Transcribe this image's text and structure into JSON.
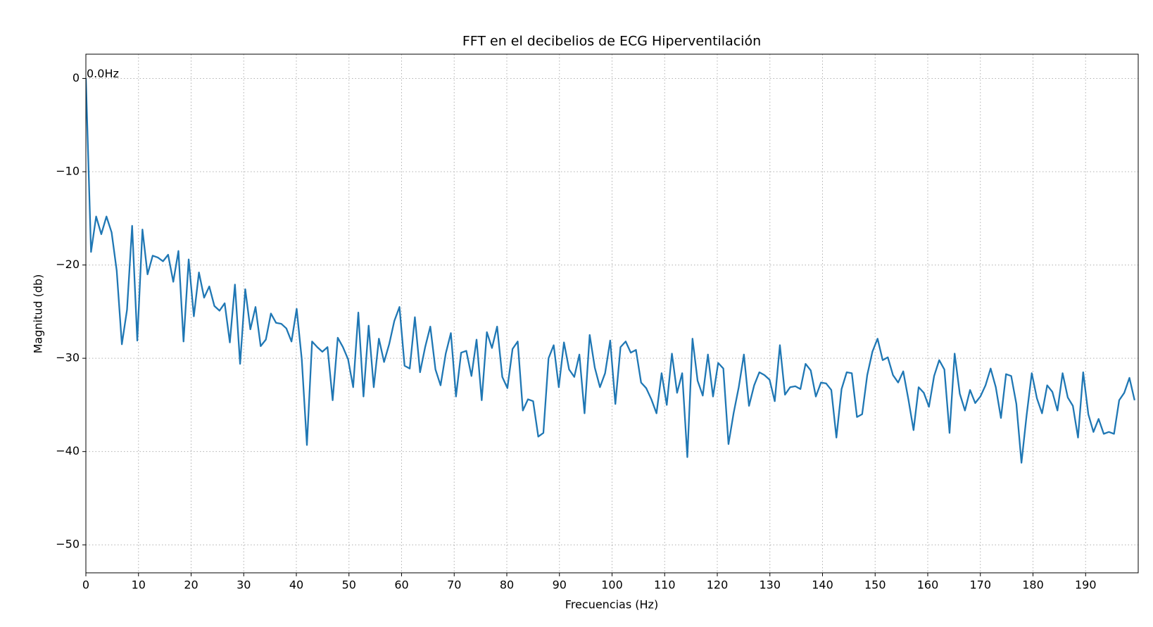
{
  "chart_data": {
    "type": "line",
    "title": "FFT en el decibelios de ECG Hiperventilación",
    "xlabel": "Frecuencias (Hz)",
    "ylabel": "Magnitud (db)",
    "annotation": "0.0Hz",
    "color": "#1f77b4",
    "grid": true,
    "xlim": [
      0,
      200
    ],
    "ylim": [
      -53,
      2.6
    ],
    "xticks": [
      0,
      10,
      20,
      30,
      40,
      50,
      60,
      70,
      80,
      90,
      100,
      110,
      120,
      130,
      140,
      150,
      160,
      170,
      180,
      190
    ],
    "yticks": [
      0,
      {
        "value": -10,
        "label": "−10"
      },
      {
        "value": -20,
        "label": "−20"
      },
      {
        "value": -30,
        "label": "−30"
      },
      {
        "value": -40,
        "label": "−40"
      },
      {
        "value": -50,
        "label": "−50"
      }
    ],
    "x": [
      0,
      0.98,
      1.95,
      2.93,
      3.91,
      4.89,
      5.86,
      6.84,
      7.82,
      8.79,
      9.77,
      10.75,
      11.72,
      12.7,
      13.68,
      14.66,
      15.63,
      16.61,
      17.59,
      18.56,
      19.54,
      20.52,
      21.49,
      22.47,
      23.45,
      24.43,
      25.4,
      26.38,
      27.36,
      28.33,
      29.31,
      30.29,
      31.26,
      32.24,
      33.22,
      34.2,
      35.17,
      36.15,
      37.13,
      38.1,
      39.08,
      40.06,
      41.03,
      42.01,
      42.99,
      43.97,
      44.94,
      45.92,
      46.9,
      47.87,
      48.85,
      49.83,
      50.8,
      51.78,
      52.76,
      53.74,
      54.71,
      55.69,
      56.67,
      57.64,
      58.62,
      59.6,
      60.57,
      61.55,
      62.53,
      63.51,
      64.48,
      65.46,
      66.44,
      67.41,
      68.39,
      69.37,
      70.34,
      71.32,
      72.3,
      73.28,
      74.25,
      75.23,
      76.21,
      77.18,
      78.16,
      79.14,
      80.11,
      81.09,
      82.07,
      83.05,
      84.02,
      85.0,
      85.98,
      86.95,
      87.93,
      88.91,
      89.88,
      90.86,
      91.84,
      92.82,
      93.79,
      94.77,
      95.75,
      96.72,
      97.7,
      98.68,
      99.65,
      100.63,
      101.61,
      102.59,
      103.56,
      104.54,
      105.52,
      106.49,
      107.47,
      108.45,
      109.42,
      110.4,
      111.38,
      112.36,
      113.33,
      114.31,
      115.29,
      116.26,
      117.24,
      118.22,
      119.19,
      120.17,
      121.15,
      122.13,
      123.1,
      124.08,
      125.06,
      126.03,
      127.01,
      127.99,
      128.96,
      129.94,
      130.92,
      131.9,
      132.87,
      133.85,
      134.83,
      135.8,
      136.78,
      137.76,
      138.73,
      139.71,
      140.69,
      141.67,
      142.64,
      143.62,
      144.6,
      145.57,
      146.55,
      147.53,
      148.5,
      149.48,
      150.46,
      151.44,
      152.41,
      153.39,
      154.37,
      155.34,
      156.32,
      157.3,
      158.27,
      159.25,
      160.23,
      161.21,
      162.18,
      163.16,
      164.14,
      165.11,
      166.09,
      167.07,
      168.04,
      169.02,
      170.0,
      170.98,
      171.95,
      172.93,
      173.91,
      174.88,
      175.86,
      176.84,
      177.81,
      178.79,
      179.77,
      180.75,
      181.72,
      182.7,
      183.68,
      184.65,
      185.63,
      186.61,
      187.58,
      188.56,
      189.54,
      190.52,
      191.49,
      192.47,
      193.45,
      194.42,
      195.4,
      196.38,
      197.35,
      198.33,
      199.31
    ],
    "values": [
      0,
      -18.6,
      -14.8,
      -16.7,
      -14.8,
      -16.5,
      -20.6,
      -28.5,
      -24.8,
      -15.8,
      -28.1,
      -16.2,
      -21.0,
      -19.0,
      -19.2,
      -19.6,
      -18.9,
      -21.8,
      -18.5,
      -28.2,
      -19.4,
      -25.5,
      -20.8,
      -23.5,
      -22.3,
      -24.4,
      -24.9,
      -24.1,
      -28.3,
      -22.1,
      -30.6,
      -22.6,
      -26.9,
      -24.5,
      -28.7,
      -28.0,
      -25.2,
      -26.2,
      -26.3,
      -26.8,
      -28.2,
      -24.7,
      -30.1,
      -39.3,
      -28.2,
      -28.8,
      -29.3,
      -28.8,
      -34.5,
      -27.8,
      -28.8,
      -30.1,
      -33.1,
      -25.1,
      -34.1,
      -26.5,
      -33.1,
      -27.9,
      -30.4,
      -28.5,
      -26.0,
      -24.5,
      -30.8,
      -31.1,
      -25.6,
      -31.5,
      -28.8,
      -26.6,
      -31.2,
      -32.9,
      -29.5,
      -27.3,
      -34.1,
      -29.4,
      -29.2,
      -31.9,
      -28.0,
      -34.5,
      -27.2,
      -28.9,
      -26.6,
      -32.0,
      -33.2,
      -29.0,
      -28.2,
      -35.6,
      -34.4,
      -34.6,
      -38.4,
      -38.0,
      -30.0,
      -28.6,
      -33.1,
      -28.3,
      -31.2,
      -32.0,
      -29.6,
      -35.9,
      -27.5,
      -31.0,
      -33.1,
      -31.6,
      -28.1,
      -34.9,
      -28.8,
      -28.2,
      -29.4,
      -29.1,
      -32.6,
      -33.2,
      -34.4,
      -35.9,
      -31.6,
      -35.0,
      -29.5,
      -33.7,
      -31.6,
      -40.6,
      -27.9,
      -32.4,
      -34.0,
      -29.6,
      -34.1,
      -30.5,
      -31.1,
      -39.2,
      -35.9,
      -33.1,
      -29.6,
      -35.1,
      -32.9,
      -31.5,
      -31.8,
      -32.3,
      -34.6,
      -28.6,
      -33.9,
      -33.1,
      -33.0,
      -33.3,
      -30.6,
      -31.3,
      -34.1,
      -32.6,
      -32.7,
      -33.4,
      -38.5,
      -33.3,
      -31.5,
      -31.6,
      -36.3,
      -36.0,
      -31.8,
      -29.3,
      -27.9,
      -30.2,
      -29.9,
      -31.8,
      -32.6,
      -31.4,
      -34.4,
      -37.7,
      -33.1,
      -33.7,
      -35.2,
      -31.9,
      -30.2,
      -31.2,
      -38.0,
      -29.5,
      -33.8,
      -35.6,
      -33.4,
      -34.8,
      -34.1,
      -32.9,
      -31.1,
      -33.1,
      -36.4,
      -31.7,
      -31.9,
      -34.9,
      -41.2,
      -36.1,
      -31.6,
      -34.3,
      -35.9,
      -32.9,
      -33.6,
      -35.6,
      -31.6,
      -34.2,
      -35.1,
      -38.5,
      -31.5,
      -36.0,
      -37.9,
      -36.5,
      -38.1,
      -37.9,
      -38.1,
      -34.5,
      -33.7,
      -32.1,
      -34.5
    ]
  }
}
